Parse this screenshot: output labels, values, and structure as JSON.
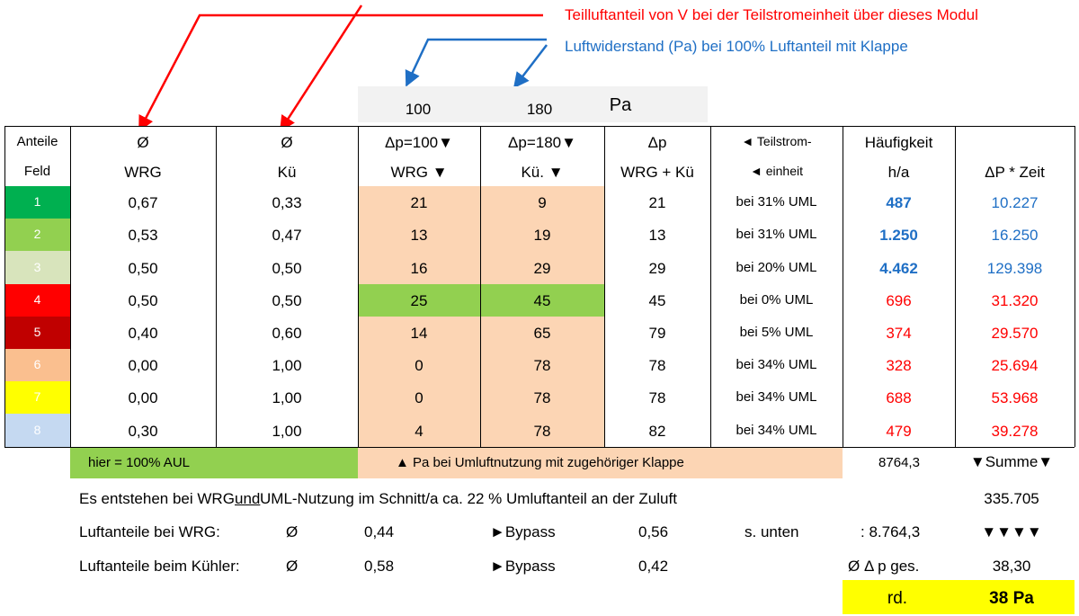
{
  "annotations": {
    "red": "Teilluftanteil von V bei der Teilstromeinheit über dieses Modul",
    "blue": "Luftwiderstand (Pa) bei 100% Luftanteil mit Klappe"
  },
  "pressure_box": {
    "a": "100",
    "b": "180",
    "unit": "Pa"
  },
  "headers": [
    {
      "top": "Anteile",
      "bottom": "Feld"
    },
    {
      "top": "Ø",
      "bottom": "WRG"
    },
    {
      "top": "Ø",
      "bottom": "Kü"
    },
    {
      "top": "Δp=100▼",
      "bottom": "WRG ▼"
    },
    {
      "top": "Δp=180▼",
      "bottom": "Kü. ▼"
    },
    {
      "top": "Δp",
      "bottom": "WRG + Kü"
    },
    {
      "top": "◄ Teilstrom-",
      "bottom": "◄ einheit"
    },
    {
      "top": "Häufigkeit",
      "bottom": "h/a"
    },
    {
      "bottom": "ΔP * Zeit"
    }
  ],
  "rows": [
    {
      "fill": "#00b050",
      "dp_fill": "#fcd5b4",
      "ink": "#1f6fc5",
      "bold": true,
      "cells": [
        "1",
        "0,67",
        "0,33",
        "21",
        "9",
        "21",
        "bei 31% UML",
        "487",
        "10.227"
      ]
    },
    {
      "fill": "#92d050",
      "dp_fill": "#fcd5b4",
      "ink": "#1f6fc5",
      "bold": true,
      "cells": [
        "2",
        "0,53",
        "0,47",
        "13",
        "19",
        "13",
        "bei 31% UML",
        "1.250",
        "16.250"
      ]
    },
    {
      "fill": "#d8e4bc",
      "dp_fill": "#fcd5b4",
      "ink": "#1f6fc5",
      "bold": true,
      "cells": [
        "3",
        "0,50",
        "0,50",
        "16",
        "29",
        "29",
        "bei 20% UML",
        "4.462",
        "129.398"
      ]
    },
    {
      "fill": "#ff0000",
      "dp_fill": "#92d050",
      "ink": "#ff0000",
      "bold": false,
      "cells": [
        "4",
        "0,50",
        "0,50",
        "25",
        "45",
        "45",
        "bei 0% UML",
        "696",
        "31.320"
      ]
    },
    {
      "fill": "#c00000",
      "dp_fill": "#fcd5b4",
      "ink": "#ff0000",
      "bold": false,
      "cells": [
        "5",
        "0,40",
        "0,60",
        "14",
        "65",
        "79",
        "bei 5% UML",
        "374",
        "29.570"
      ]
    },
    {
      "fill": "#fabf8f",
      "dp_fill": "#fcd5b4",
      "ink": "#ff0000",
      "bold": false,
      "cells": [
        "6",
        "0,00",
        "1,00",
        "0",
        "78",
        "78",
        "bei 34% UML",
        "328",
        "25.694"
      ]
    },
    {
      "fill": "#ffff00",
      "dp_fill": "#fcd5b4",
      "ink": "#ff0000",
      "bold": false,
      "cells": [
        "7",
        "0,00",
        "1,00",
        "0",
        "78",
        "78",
        "bei 34% UML",
        "688",
        "53.968"
      ]
    },
    {
      "fill": "#c5d9f1",
      "dp_fill": "#fcd5b4",
      "ink": "#ff0000",
      "bold": false,
      "cells": [
        "8",
        "0,30",
        "1,00",
        "4",
        "78",
        "82",
        "bei 34% UML",
        "479",
        "39.278"
      ]
    }
  ],
  "footer": {
    "aul": "hier = 100% AUL",
    "pa_note": "▲ Pa bei Umluftnutzung mit zugehöriger Klappe",
    "hours": "8764,3",
    "summe": "▼Summe▼",
    "sentence": [
      "Es entstehen bei WRG ",
      "und",
      " UML-Nutzung im Schnitt/a ca. 22 % Umluftanteil an der Zuluft"
    ],
    "total": "335.705",
    "wrg": [
      "Luftanteile bei WRG:",
      "Ø",
      "0,44",
      "►Bypass",
      "0,56",
      "s. unten",
      ": 8.764,3",
      "▼▼▼▼"
    ],
    "kuehler": [
      "Luftanteile beim Kühler:",
      "Ø",
      "0,58",
      "►Bypass",
      "0,42",
      "Ø Δ p ges.",
      "38,30"
    ],
    "result": {
      "label": "rd.",
      "value": "38 Pa"
    }
  }
}
